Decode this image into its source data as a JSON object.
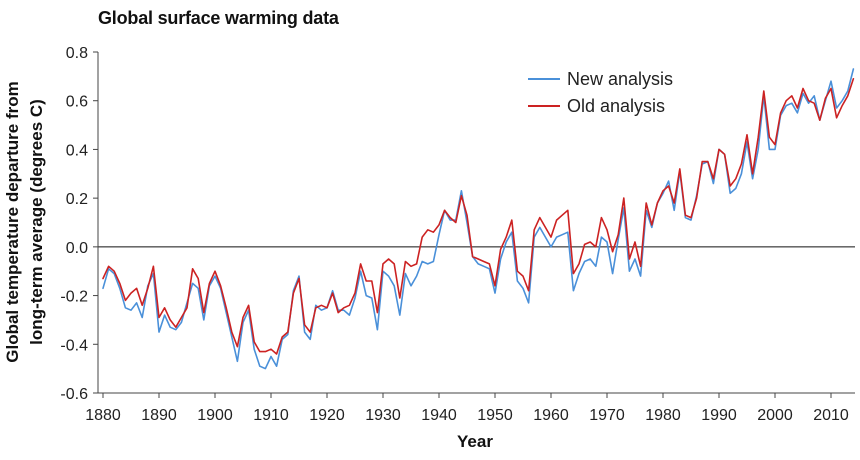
{
  "chart_data": {
    "type": "line",
    "title": "Global surface warming data",
    "xlabel": "Year",
    "ylabel_line1": "Global temperature departure from",
    "ylabel_line2": "long-term average  (degrees C)",
    "xlim": [
      1878,
      2015
    ],
    "ylim": [
      -0.6,
      0.8
    ],
    "xticks": [
      1880,
      1890,
      1900,
      1910,
      1920,
      1930,
      1940,
      1950,
      1960,
      1970,
      1980,
      1990,
      2000,
      2010
    ],
    "yticks": [
      -0.6,
      -0.4,
      -0.2,
      0.0,
      0.2,
      0.4,
      0.6,
      0.8
    ],
    "ytick_labels": [
      "-0.6",
      "-0.4",
      "-0.2",
      "0.0",
      "0.2",
      "0.4",
      "0.6",
      "0.8"
    ],
    "zero_line": true,
    "legend_position": "top-right",
    "x_start": 1880,
    "series": [
      {
        "name": "New analysis",
        "color": "#4a90d9",
        "values": [
          -0.17,
          -0.09,
          -0.11,
          -0.17,
          -0.25,
          -0.26,
          -0.23,
          -0.29,
          -0.16,
          -0.11,
          -0.35,
          -0.28,
          -0.33,
          -0.34,
          -0.31,
          -0.23,
          -0.15,
          -0.17,
          -0.3,
          -0.16,
          -0.12,
          -0.17,
          -0.27,
          -0.37,
          -0.47,
          -0.31,
          -0.26,
          -0.42,
          -0.49,
          -0.5,
          -0.45,
          -0.49,
          -0.38,
          -0.36,
          -0.18,
          -0.12,
          -0.35,
          -0.38,
          -0.24,
          -0.26,
          -0.25,
          -0.18,
          -0.26,
          -0.26,
          -0.28,
          -0.21,
          -0.1,
          -0.2,
          -0.21,
          -0.34,
          -0.1,
          -0.12,
          -0.16,
          -0.28,
          -0.11,
          -0.16,
          -0.12,
          -0.06,
          -0.07,
          -0.06,
          0.05,
          0.15,
          0.11,
          0.11,
          0.23,
          0.1,
          -0.04,
          -0.07,
          -0.08,
          -0.09,
          -0.19,
          -0.05,
          0.02,
          0.06,
          -0.14,
          -0.17,
          -0.23,
          0.04,
          0.08,
          0.04,
          0.0,
          0.04,
          0.05,
          0.06,
          -0.18,
          -0.11,
          -0.06,
          -0.05,
          -0.08,
          0.04,
          0.02,
          -0.11,
          0.03,
          0.16,
          -0.1,
          -0.05,
          -0.12,
          0.15,
          0.08,
          0.18,
          0.22,
          0.27,
          0.15,
          0.31,
          0.12,
          0.11,
          0.21,
          0.34,
          0.35,
          0.26,
          0.4,
          0.38,
          0.22,
          0.24,
          0.3,
          0.43,
          0.28,
          0.4,
          0.62,
          0.4,
          0.4,
          0.54,
          0.58,
          0.59,
          0.55,
          0.63,
          0.59,
          0.62,
          0.52,
          0.6,
          0.68,
          0.57,
          0.6,
          0.64,
          0.73
        ]
      },
      {
        "name": "Old analysis",
        "color": "#cc2222",
        "values": [
          -0.13,
          -0.08,
          -0.1,
          -0.15,
          -0.22,
          -0.19,
          -0.17,
          -0.24,
          -0.17,
          -0.08,
          -0.29,
          -0.25,
          -0.3,
          -0.33,
          -0.29,
          -0.25,
          -0.09,
          -0.13,
          -0.27,
          -0.15,
          -0.1,
          -0.16,
          -0.25,
          -0.35,
          -0.41,
          -0.29,
          -0.24,
          -0.39,
          -0.43,
          -0.43,
          -0.42,
          -0.44,
          -0.37,
          -0.35,
          -0.19,
          -0.13,
          -0.32,
          -0.35,
          -0.25,
          -0.24,
          -0.25,
          -0.19,
          -0.27,
          -0.25,
          -0.24,
          -0.19,
          -0.07,
          -0.14,
          -0.14,
          -0.27,
          -0.07,
          -0.05,
          -0.07,
          -0.21,
          -0.06,
          -0.08,
          -0.07,
          0.04,
          0.07,
          0.06,
          0.09,
          0.15,
          0.12,
          0.1,
          0.21,
          0.13,
          -0.04,
          -0.05,
          -0.06,
          -0.07,
          -0.16,
          -0.01,
          0.04,
          0.11,
          -0.1,
          -0.12,
          -0.18,
          0.07,
          0.12,
          0.08,
          0.04,
          0.11,
          0.13,
          0.15,
          -0.11,
          -0.07,
          0.01,
          0.02,
          0.0,
          0.12,
          0.07,
          -0.02,
          0.05,
          0.2,
          -0.05,
          0.02,
          -0.08,
          0.18,
          0.09,
          0.18,
          0.23,
          0.25,
          0.18,
          0.32,
          0.13,
          0.12,
          0.2,
          0.35,
          0.35,
          0.28,
          0.4,
          0.38,
          0.25,
          0.28,
          0.34,
          0.46,
          0.3,
          0.45,
          0.64,
          0.45,
          0.42,
          0.55,
          0.6,
          0.62,
          0.57,
          0.65,
          0.6,
          0.59,
          0.52,
          0.61,
          0.65,
          0.53,
          0.58,
          0.62,
          0.69
        ]
      }
    ]
  }
}
